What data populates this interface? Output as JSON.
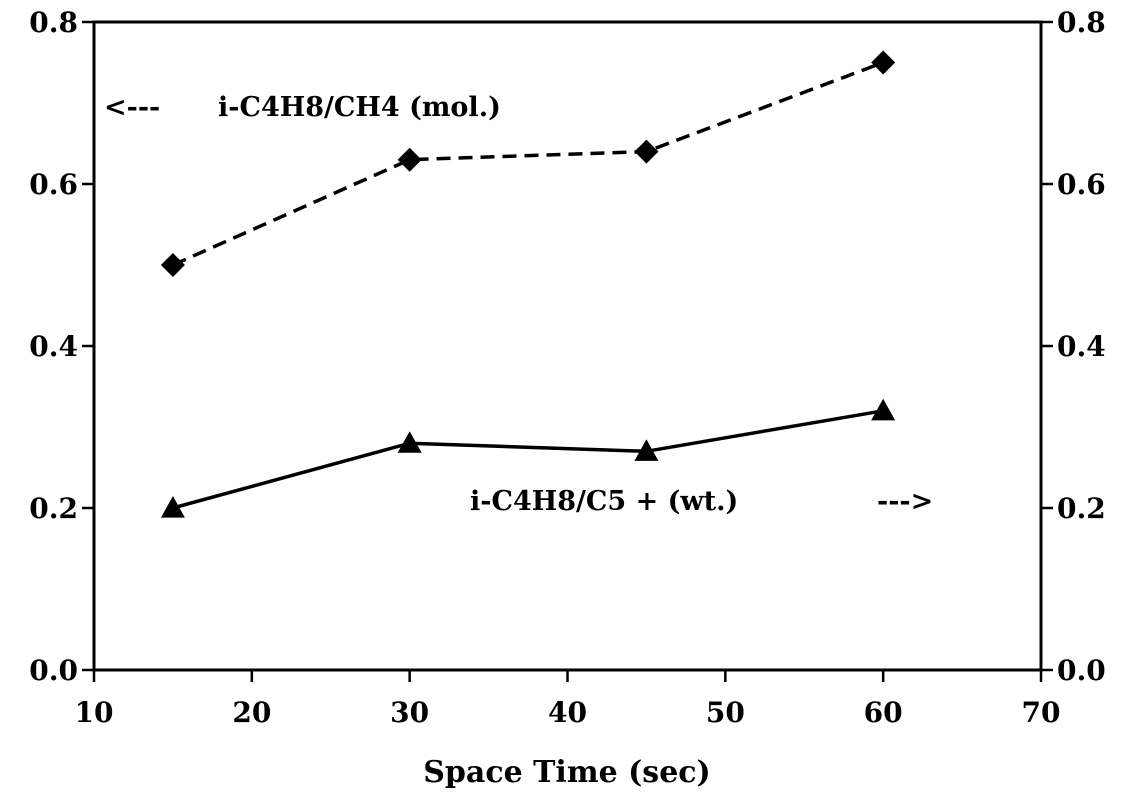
{
  "chart_data": {
    "type": "line",
    "xlabel": "Space Time (sec)",
    "ylabel": "",
    "xlim": [
      10,
      70
    ],
    "ylim": [
      0.0,
      0.8
    ],
    "y2lim": [
      0.0,
      0.8
    ],
    "x_ticks": [
      "10",
      "20",
      "30",
      "40",
      "50",
      "60",
      "70"
    ],
    "y_ticks": [
      "0.0",
      "0.2",
      "0.4",
      "0.6",
      "0.8"
    ],
    "y2_ticks": [
      "0.0",
      "0.2",
      "0.4",
      "0.6",
      "0.8"
    ],
    "grid": false,
    "x": [
      15,
      30,
      45,
      60
    ],
    "series": [
      {
        "label": "i-C4H8/CH4 (mol.)",
        "arrow": "<---",
        "axis": "left",
        "marker": "diamond",
        "line_style": "dashed",
        "values": [
          0.5,
          0.63,
          0.64,
          0.75
        ]
      },
      {
        "label": "i-C4H8/C5 + (wt.)",
        "arrow": "--->",
        "axis": "right",
        "marker": "triangle",
        "line_style": "solid",
        "values": [
          0.2,
          0.28,
          0.27,
          0.32
        ]
      }
    ]
  }
}
